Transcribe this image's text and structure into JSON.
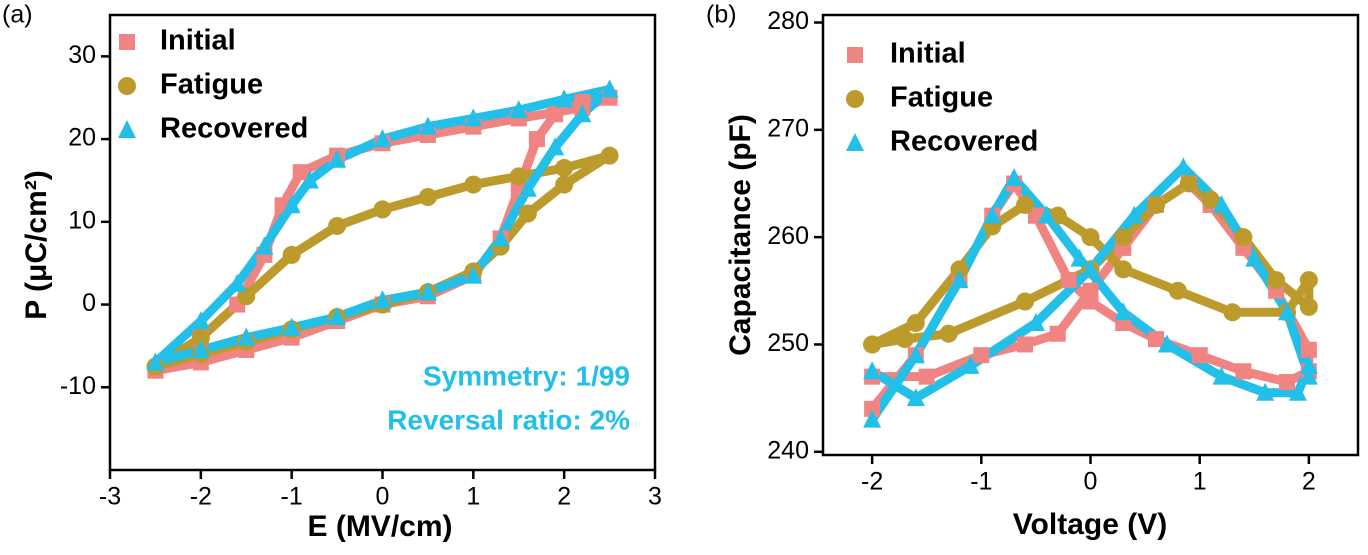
{
  "chart_data": [
    {
      "type": "scatter",
      "panel_label": "(a)",
      "xlabel": "E (MV/cm)",
      "ylabel": "P (μC/cm²)",
      "xlim": [
        -3,
        3
      ],
      "ylim": [
        -20,
        35
      ],
      "xticks": [
        -3,
        -2,
        -1,
        0,
        1,
        2,
        3
      ],
      "yticks": [
        -10,
        0,
        10,
        20,
        30
      ],
      "legend": "upper left",
      "series": [
        {
          "name": "Initial",
          "color": "#f08482",
          "marker": "square",
          "x": [
            0,
            0.5,
            1,
            1.3,
            1.5,
            1.7,
            1.9,
            2.2,
            2.5,
            2.2,
            1.5,
            1,
            0.5,
            0,
            -0.5,
            -0.9,
            -1.1,
            -1.3,
            -1.6,
            -2,
            -2.5,
            -2,
            -1.5,
            -1,
            -0.5,
            0
          ],
          "values": [
            0,
            1,
            3.5,
            8,
            14,
            20,
            23,
            24.5,
            25,
            23.8,
            22.5,
            21.5,
            20.5,
            19.5,
            18,
            16,
            12,
            6,
            0,
            -4,
            -8,
            -7,
            -5.5,
            -4,
            -2,
            0
          ]
        },
        {
          "name": "Fatigue",
          "color": "#bc9a2c",
          "marker": "circle",
          "x": [
            0,
            0.5,
            1,
            1.3,
            1.6,
            2,
            2.5,
            2,
            1.5,
            1,
            0.5,
            0,
            -0.5,
            -1,
            -1.5,
            -2,
            -2.5,
            -2,
            -1.5,
            -1,
            -0.5,
            0
          ],
          "values": [
            0,
            1.5,
            4,
            7,
            11,
            14.5,
            18,
            16.5,
            15.5,
            14.5,
            13,
            11.5,
            9.5,
            6,
            1,
            -4,
            -7.5,
            -6,
            -4.5,
            -3,
            -1.5,
            0
          ]
        },
        {
          "name": "Recovered",
          "color": "#22bfe8",
          "marker": "triangle",
          "x": [
            0,
            0.5,
            1,
            1.3,
            1.6,
            1.9,
            2.2,
            2.5,
            2,
            1.5,
            1,
            0.5,
            0,
            -0.5,
            -0.8,
            -1,
            -1.3,
            -1.6,
            -2,
            -2.5,
            -2,
            -1.5,
            -1,
            -0.5,
            0
          ],
          "values": [
            0.5,
            1.5,
            3.5,
            8,
            14,
            19,
            23,
            26,
            24.8,
            23.5,
            22.5,
            21.5,
            20,
            17.5,
            15,
            12,
            7,
            2.5,
            -2,
            -7,
            -5.5,
            -4,
            -2.8,
            -1.5,
            0.5
          ]
        }
      ],
      "annotations": [
        "Symmetry: 1/99",
        "Reversal ratio: 2%"
      ],
      "annotation_color": "#22bfe8"
    },
    {
      "type": "scatter",
      "panel_label": "(b)",
      "xlabel": "Voltage (V)",
      "ylabel": "Capacitance (pF)",
      "xlim": [
        -2.45,
        2.45
      ],
      "ylim": [
        239.7,
        280.7
      ],
      "xticks": [
        -2,
        -1,
        0,
        1,
        2
      ],
      "yticks": [
        240,
        250,
        260,
        270,
        280
      ],
      "legend": "upper left",
      "series": [
        {
          "name": "Initial",
          "color": "#f08482",
          "marker": "square",
          "x": [
            -2,
            -1.6,
            -1.2,
            -0.9,
            -0.7,
            -0.5,
            -0.2,
            0,
            0.3,
            0.6,
            1,
            1.4,
            1.8,
            2,
            2,
            1.7,
            1.4,
            1.1,
            0.9,
            0.6,
            0.3,
            0,
            -0.3,
            -0.6,
            -1,
            -1.5,
            -2
          ],
          "values": [
            244,
            249,
            256,
            262,
            265,
            262,
            256,
            254,
            252,
            250.5,
            249,
            247.5,
            246.5,
            247.5,
            249.5,
            255,
            259,
            263,
            265,
            263,
            259,
            255,
            251,
            250,
            249,
            247,
            247
          ]
        },
        {
          "name": "Fatigue",
          "color": "#bc9a2c",
          "marker": "circle",
          "x": [
            -2,
            -1.6,
            -1.2,
            -0.9,
            -0.6,
            -0.3,
            0,
            0.3,
            0.8,
            1.3,
            1.8,
            2,
            2,
            1.7,
            1.4,
            1.1,
            0.9,
            0.6,
            0.3,
            0,
            -0.6,
            -1.3,
            -1.7,
            -2
          ],
          "values": [
            250,
            252,
            257,
            261,
            263,
            262,
            260,
            257,
            255,
            253,
            253,
            256,
            253.5,
            256,
            260,
            263.5,
            265,
            263,
            260,
            257,
            254,
            251,
            250.5,
            250
          ]
        },
        {
          "name": "Recovered",
          "color": "#22bfe8",
          "marker": "triangle",
          "x": [
            -2,
            -1.6,
            -1.2,
            -0.9,
            -0.7,
            -0.4,
            -0.1,
            0.3,
            0.7,
            1.2,
            1.6,
            1.9,
            2,
            2,
            1.8,
            1.5,
            1.2,
            0.85,
            0.4,
            0,
            -0.5,
            -1.1,
            -1.6,
            -2
          ],
          "values": [
            243,
            249,
            256,
            262,
            265.5,
            262,
            258,
            253,
            250,
            247,
            245.5,
            245.5,
            248,
            247,
            253,
            258,
            263,
            266.5,
            262,
            257,
            252,
            248,
            245,
            247.5
          ]
        }
      ]
    }
  ]
}
